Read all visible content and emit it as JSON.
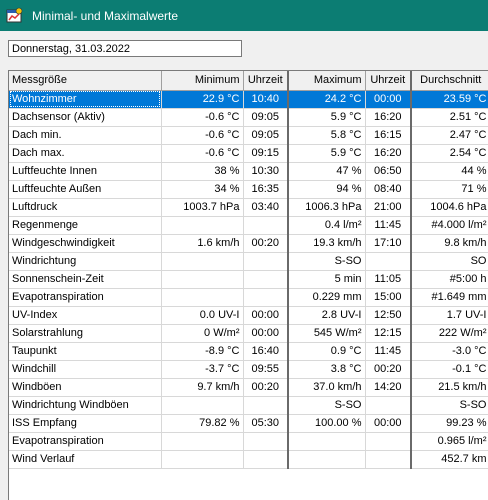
{
  "window": {
    "title": "Minimal- und Maximalwerte",
    "icon": "app-window-icon"
  },
  "date_field": {
    "value": "Donnerstag, 31.03.2022"
  },
  "table": {
    "columns": [
      "Messgröße",
      "Minimum",
      "Uhrzeit",
      "Maximum",
      "Uhrzeit",
      "Durchschnitt"
    ],
    "rows": [
      [
        "Wohnzimmer",
        "22.9 °C",
        "10:40",
        "24.2 °C",
        "00:00",
        "23.59 °C"
      ],
      [
        "Dachsensor (Aktiv)",
        "-0.6 °C",
        "09:05",
        "5.9 °C",
        "16:20",
        "2.51 °C"
      ],
      [
        "Dach min.",
        "-0.6 °C",
        "09:05",
        "5.8 °C",
        "16:15",
        "2.47 °C"
      ],
      [
        "Dach max.",
        "-0.6 °C",
        "09:15",
        "5.9 °C",
        "16:20",
        "2.54 °C"
      ],
      [
        "Luftfeuchte Innen",
        "38 %",
        "10:30",
        "47 %",
        "06:50",
        "44 %"
      ],
      [
        "Luftfeuchte Außen",
        "34 %",
        "16:35",
        "94 %",
        "08:40",
        "71 %"
      ],
      [
        "Luftdruck",
        "1003.7 hPa",
        "03:40",
        "1006.3 hPa",
        "21:00",
        "1004.6 hPa"
      ],
      [
        "Regenmenge",
        "",
        "",
        "0.4 l/m²",
        "11:45",
        "#4.000 l/m²"
      ],
      [
        "Windgeschwindigkeit",
        "1.6 km/h",
        "00:20",
        "19.3 km/h",
        "17:10",
        "9.8 km/h"
      ],
      [
        "Windrichtung",
        "",
        "",
        "S-SO",
        "",
        "SO"
      ],
      [
        "Sonnenschein-Zeit",
        "",
        "",
        "5 min",
        "11:05",
        "#5:00 h"
      ],
      [
        "Evapotranspiration",
        "",
        "",
        "0.229 mm",
        "15:00",
        "#1.649 mm"
      ],
      [
        "UV-Index",
        "0.0 UV-I",
        "00:00",
        "2.8 UV-I",
        "12:50",
        "1.7 UV-I"
      ],
      [
        "Solarstrahlung",
        "0 W/m²",
        "00:00",
        "545 W/m²",
        "12:15",
        "222 W/m²"
      ],
      [
        "Taupunkt",
        "-8.9 °C",
        "16:40",
        "0.9 °C",
        "11:45",
        "-3.0 °C"
      ],
      [
        "Windchill",
        "-3.7 °C",
        "09:55",
        "3.8 °C",
        "00:20",
        "-0.1 °C"
      ],
      [
        "Windböen",
        "9.7 km/h",
        "00:20",
        "37.0 km/h",
        "14:20",
        "21.5 km/h"
      ],
      [
        "Windrichtung Windböen",
        "",
        "",
        "S-SO",
        "",
        "S-SO"
      ],
      [
        "ISS Empfang",
        "79.82 %",
        "05:30",
        "100.00 %",
        "00:00",
        "99.23 %"
      ],
      [
        "Evapotranspiration",
        "",
        "",
        "",
        "",
        "0.965 l/m²"
      ],
      [
        "Wind Verlauf",
        "",
        "",
        "",
        "",
        "452.7 km"
      ]
    ],
    "selected_row": 0
  }
}
